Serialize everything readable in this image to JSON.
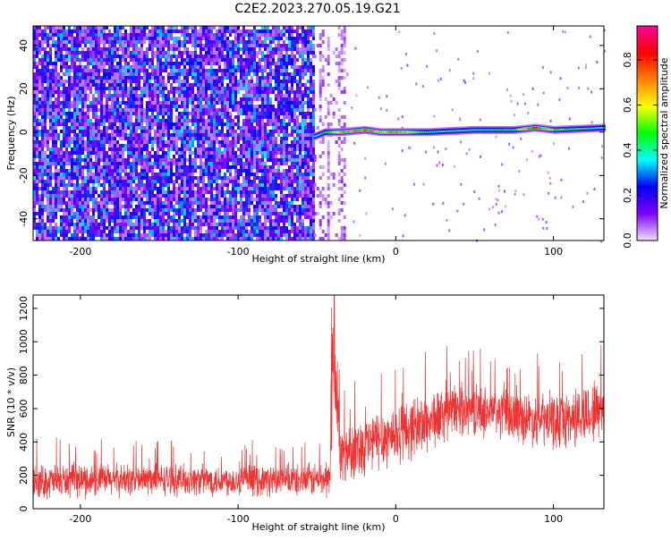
{
  "title": "C2E2.2023.270.05.19.G21",
  "chart_data": [
    {
      "type": "heatmap",
      "xlabel": "Height of straight line (km)",
      "ylabel": "Frequency (Hz)",
      "xlim": [
        -230,
        132
      ],
      "ylim": [
        -50,
        49
      ],
      "xticks": [
        -200,
        -100,
        0,
        100
      ],
      "yticks": [
        -40,
        -20,
        0,
        20,
        40
      ],
      "colorbar": {
        "label": "Normalized spectral amplitude",
        "range": [
          0,
          0.95
        ],
        "ticks": [
          0.0,
          0.2,
          0.4,
          0.6,
          0.8
        ],
        "tick_labels": [
          "0.0",
          "0.2",
          "0.4",
          "0.6",
          "0.8"
        ],
        "colormap": [
          "#f0e0f8",
          "#7f00ff",
          "#0000ff",
          "#00ffff",
          "#00ff00",
          "#ffff00",
          "#ff8000",
          "#ff0000",
          "#ff00a0"
        ]
      },
      "noise_region": {
        "x": [
          -230,
          -52
        ],
        "amplitude": [
          0.05,
          0.35
        ]
      },
      "sparse_region": {
        "x": [
          -52,
          -30
        ]
      },
      "signal_ridge": [
        {
          "x": -52,
          "y": -2,
          "amplitude": 0.4
        },
        {
          "x": -45,
          "y": 0,
          "amplitude": 0.5
        },
        {
          "x": -35,
          "y": 0,
          "amplitude": 0.75
        },
        {
          "x": -20,
          "y": 1,
          "amplitude": 0.8
        },
        {
          "x": -10,
          "y": 0,
          "amplitude": 0.7
        },
        {
          "x": 0,
          "y": 0,
          "amplitude": 0.8
        },
        {
          "x": 20,
          "y": 0,
          "amplitude": 0.45
        },
        {
          "x": 50,
          "y": 1,
          "amplitude": 0.45
        },
        {
          "x": 75,
          "y": 1,
          "amplitude": 0.5
        },
        {
          "x": 88,
          "y": 2,
          "amplitude": 0.9
        },
        {
          "x": 100,
          "y": 1,
          "amplitude": 0.55
        },
        {
          "x": 132,
          "y": 2,
          "amplitude": 0.45
        }
      ]
    },
    {
      "type": "line",
      "xlabel": "Height of straight line (km)",
      "ylabel": "SNR (10 * v/v)",
      "xlim": [
        -230,
        132
      ],
      "ylim": [
        0,
        1280
      ],
      "xticks": [
        -200,
        -100,
        0,
        100
      ],
      "yticks": [
        0,
        200,
        400,
        600,
        800,
        1000,
        1200
      ],
      "series": [
        {
          "color": "#ee3333",
          "x": [
            -230,
            -200,
            -150,
            -100,
            -60,
            -42,
            -40,
            -38,
            -35,
            -30,
            -20,
            -10,
            0,
            20,
            40,
            60,
            80,
            100,
            120,
            132
          ],
          "y_mean": [
            160,
            170,
            175,
            170,
            170,
            180,
            600,
            800,
            300,
            350,
            380,
            420,
            450,
            520,
            600,
            580,
            550,
            520,
            560,
            620
          ],
          "y_spread": [
            120,
            120,
            110,
            110,
            110,
            140,
            350,
            400,
            250,
            200,
            220,
            220,
            220,
            220,
            180,
            180,
            180,
            200,
            220,
            250
          ]
        }
      ]
    }
  ]
}
